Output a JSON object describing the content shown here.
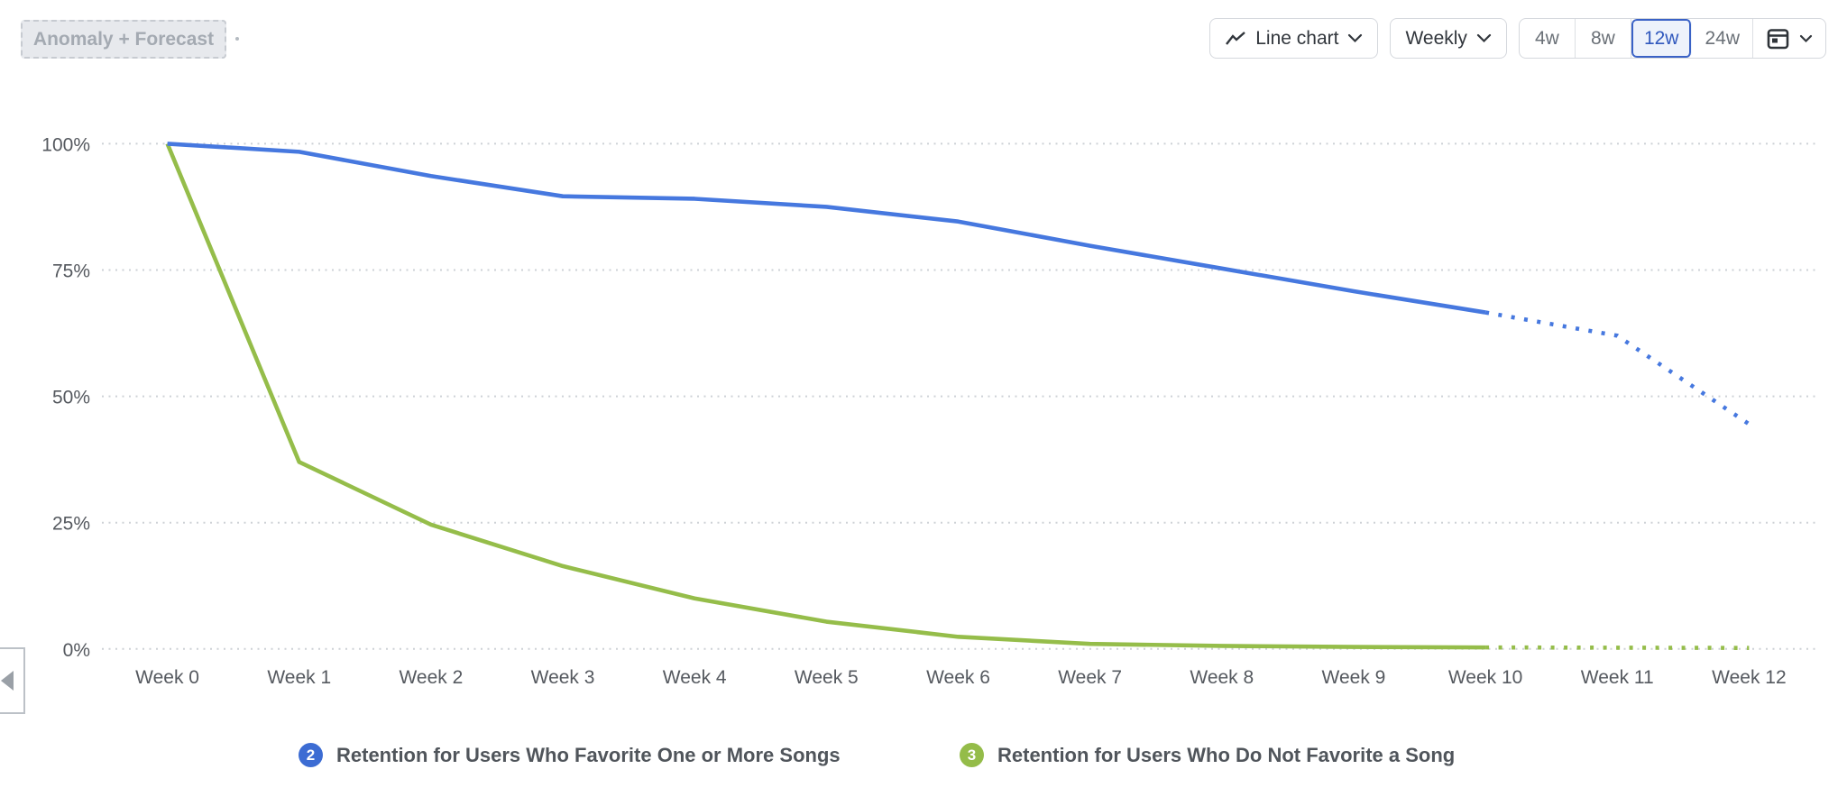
{
  "toolbar": {
    "anomaly_forecast_label": "Anomaly + Forecast",
    "chart_type_label": "Line chart",
    "granularity_label": "Weekly",
    "ranges": [
      {
        "label": "4w",
        "selected": false
      },
      {
        "label": "8w",
        "selected": false
      },
      {
        "label": "12w",
        "selected": true
      },
      {
        "label": "24w",
        "selected": false
      }
    ],
    "icons": {
      "chart_type": "line-zigzag-icon",
      "chart_type_caret": "chevron-down-icon",
      "granularity_caret": "chevron-down-icon",
      "date_picker": "calendar-icon",
      "date_picker_caret": "chevron-down-icon"
    }
  },
  "sidebar_toggle": {
    "icon": "left-triangle-icon"
  },
  "colors": {
    "series_favorite": "#4678DF",
    "series_not_favorite": "#95BD4A",
    "badge_favorite": "#3C6CD3",
    "badge_not_favorite": "#94BC49",
    "selected_range_accent": "#3A62C6",
    "selected_range_bg": "#EDF2FB",
    "selected_range_text": "#3058BD",
    "gridline": "#CDD1D6",
    "axis_text": "#55595F"
  },
  "chart_data": {
    "type": "line",
    "categories": [
      "Week 0",
      "Week 1",
      "Week 2",
      "Week 3",
      "Week 4",
      "Week 5",
      "Week 6",
      "Week 7",
      "Week 8",
      "Week 9",
      "Week 10",
      "Week 11",
      "Week 12"
    ],
    "y_ticks": [
      {
        "label": "100%",
        "value": 100
      },
      {
        "label": "75%",
        "value": 75
      },
      {
        "label": "50%",
        "value": 50
      },
      {
        "label": "25%",
        "value": 25
      },
      {
        "label": "0%",
        "value": 0
      }
    ],
    "ylim": [
      0,
      100
    ],
    "grid": "horizontal-dotted",
    "legend_position": "bottom",
    "forecast_style": "dotted",
    "series": [
      {
        "badge": "2",
        "name": "Retention for Users Who Favorite One or More Songs",
        "color": "#4678DF",
        "badge_color": "#3C6CD3",
        "actual_weeks": [
          0,
          1,
          2,
          3,
          4,
          5,
          6,
          7,
          8,
          9,
          10
        ],
        "actual_values": [
          100,
          98.4,
          93.6,
          89.6,
          89.1,
          87.5,
          84.6,
          79.8,
          75.3,
          70.8,
          66.6
        ],
        "forecast_weeks": [
          10,
          11,
          12
        ],
        "forecast_values": [
          66.6,
          62.0,
          44.5
        ]
      },
      {
        "badge": "3",
        "name": "Retention for Users Who Do Not Favorite a Song",
        "color": "#95BD4A",
        "badge_color": "#94BC49",
        "actual_weeks": [
          0,
          1,
          2,
          3,
          4,
          5,
          6,
          7,
          8,
          9,
          10
        ],
        "actual_values": [
          100,
          37.0,
          24.6,
          16.4,
          10.0,
          5.4,
          2.4,
          1.0,
          0.6,
          0.4,
          0.3
        ],
        "forecast_weeks": [
          10,
          11,
          12
        ],
        "forecast_values": [
          0.3,
          0.25,
          0.2
        ]
      }
    ]
  }
}
